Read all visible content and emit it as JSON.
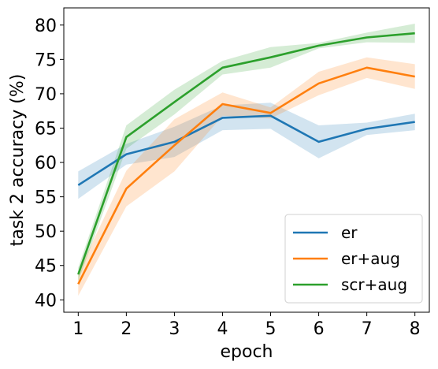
{
  "chart_data": {
    "type": "line",
    "xlabel": "epoch",
    "ylabel": "task 2 accuracy (%)",
    "x": [
      1,
      2,
      3,
      4,
      5,
      6,
      7,
      8
    ],
    "xlim": [
      0.7,
      8.3
    ],
    "ylim": [
      38.2,
      82.5
    ],
    "xticks": [
      1,
      2,
      3,
      4,
      5,
      6,
      7,
      8
    ],
    "yticks": [
      40,
      45,
      50,
      55,
      60,
      65,
      70,
      75,
      80
    ],
    "grid": false,
    "legend_position": "lower-right",
    "series": [
      {
        "name": "er",
        "color": "#1f77b4",
        "values": [
          56.7,
          61.2,
          63.0,
          66.5,
          66.8,
          63.0,
          64.9,
          65.9
        ],
        "lower": [
          54.7,
          59.7,
          60.8,
          64.7,
          64.9,
          60.6,
          64.0,
          64.7
        ],
        "upper": [
          58.7,
          62.7,
          65.2,
          68.3,
          68.7,
          65.4,
          65.8,
          67.1
        ]
      },
      {
        "name": "er+aug",
        "color": "#ff7f0e",
        "values": [
          42.3,
          56.2,
          62.5,
          68.5,
          67.2,
          71.5,
          73.8,
          72.5
        ],
        "lower": [
          40.6,
          53.6,
          58.7,
          66.8,
          66.4,
          69.8,
          72.3,
          70.7
        ],
        "upper": [
          44.0,
          58.8,
          66.3,
          70.2,
          68.0,
          73.2,
          75.3,
          74.3
        ]
      },
      {
        "name": "scr+aug",
        "color": "#2ca02c",
        "values": [
          43.7,
          63.7,
          68.8,
          73.8,
          75.3,
          77.0,
          78.2,
          78.8
        ],
        "lower": [
          42.7,
          62.0,
          67.0,
          72.8,
          73.8,
          76.6,
          77.5,
          77.4
        ],
        "upper": [
          44.7,
          65.4,
          70.6,
          74.8,
          76.8,
          77.4,
          78.9,
          80.2
        ]
      }
    ]
  }
}
